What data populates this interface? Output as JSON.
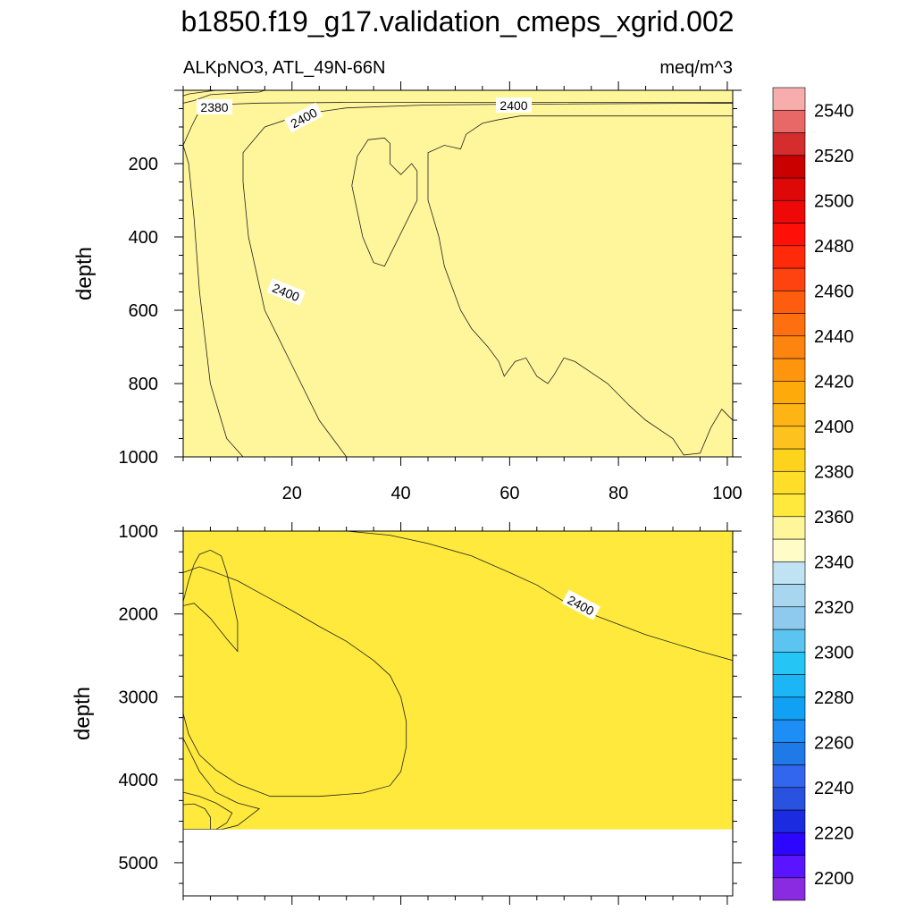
{
  "chart_data": {
    "type": "contour",
    "title": "b1850.f19_g17.validation_cmeps_xgrid.002",
    "subtitle_left": "ALKpNO3, ATL_49N-66N",
    "subtitle_right": "meq/m^3",
    "ylabel": "depth",
    "xlim": [
      0,
      101
    ],
    "x_ticks": [
      "20",
      "40",
      "60",
      "80",
      "100"
    ],
    "panels": [
      {
        "name": "upper",
        "ylim": [
          0,
          1000
        ],
        "y_ticks": [
          "200",
          "400",
          "600",
          "800",
          "1000"
        ],
        "contour_labels": [
          "2380",
          "2400",
          "2400",
          "2400"
        ],
        "regions": [
          {
            "level": 2390,
            "color": "#fff59a",
            "polygon": [
              [
                0,
                0
              ],
              [
                101,
                0
              ],
              [
                101,
                1000
              ],
              [
                0,
                1000
              ]
            ]
          },
          {
            "level": 2400,
            "color": "#fee93c",
            "polygon": [
              [
                0,
                150
              ],
              [
                1.5,
                100
              ],
              [
                3,
                55
              ],
              [
                5,
                42
              ],
              [
                8,
                38
              ],
              [
                14,
                35
              ],
              [
                30,
                33
              ],
              [
                60,
                33
              ],
              [
                101,
                33
              ],
              [
                101,
                1000
              ],
              [
                11,
                1000
              ],
              [
                8,
                950
              ],
              [
                5,
                800
              ],
              [
                3,
                550
              ],
              [
                2,
                350
              ],
              [
                1,
                200
              ]
            ]
          },
          {
            "level": 2410,
            "color": "#fed31c",
            "polygon": [
              [
                11,
                170
              ],
              [
                15,
                100
              ],
              [
                22,
                65
              ],
              [
                30,
                48
              ],
              [
                45,
                40
              ],
              [
                60,
                38
              ],
              [
                101,
                35
              ],
              [
                101,
                1000
              ],
              [
                30,
                1000
              ],
              [
                25,
                900
              ],
              [
                20,
                750
              ],
              [
                15,
                600
              ],
              [
                12,
                400
              ],
              [
                11,
                250
              ]
            ]
          },
          {
            "level": 2420,
            "color": "#fec21e",
            "polygon": [
              [
                32,
                180
              ],
              [
                34,
                135
              ],
              [
                37,
                130
              ],
              [
                38,
                145
              ],
              [
                38,
                200
              ],
              [
                40,
                230
              ],
              [
                42,
                200
              ],
              [
                43,
                220
              ],
              [
                43,
                300
              ],
              [
                41,
                360
              ],
              [
                39,
                420
              ],
              [
                37,
                480
              ],
              [
                35,
                470
              ],
              [
                33,
                400
              ],
              [
                31,
                260
              ]
            ]
          },
          {
            "level": 2420,
            "color": "#fec21e",
            "polygon": [
              [
                45,
                170
              ],
              [
                48,
                150
              ],
              [
                51,
                160
              ],
              [
                52,
                120
              ],
              [
                55,
                90
              ],
              [
                58,
                80
              ],
              [
                62,
                70
              ],
              [
                101,
                70
              ],
              [
                101,
                900
              ],
              [
                99,
                870
              ],
              [
                97,
                920
              ],
              [
                95,
                990
              ],
              [
                92,
                995
              ],
              [
                90,
                950
              ],
              [
                85,
                900
              ],
              [
                82,
                860
              ],
              [
                78,
                800
              ],
              [
                75,
                770
              ],
              [
                72,
                740
              ],
              [
                70,
                730
              ],
              [
                68,
                780
              ],
              [
                67,
                800
              ],
              [
                65,
                780
              ],
              [
                63,
                730
              ],
              [
                61,
                740
              ],
              [
                59,
                780
              ],
              [
                58,
                740
              ],
              [
                56,
                700
              ],
              [
                53,
                650
              ],
              [
                51,
                600
              ],
              [
                48,
                480
              ],
              [
                47,
                400
              ],
              [
                45,
                300
              ]
            ]
          },
          {
            "level": 2380,
            "color": "#bfe3f3",
            "polygon": [
              [
                0,
                0
              ],
              [
                15,
                0
              ],
              [
                14,
                5
              ],
              [
                9,
                8
              ],
              [
                5,
                12
              ],
              [
                2,
                28
              ],
              [
                0,
                35
              ]
            ]
          },
          {
            "level": 2370,
            "color": "#8ec9ee",
            "polygon": [
              [
                0,
                0
              ],
              [
                6,
                0
              ],
              [
                4,
                4
              ],
              [
                1,
                10
              ],
              [
                0,
                15
              ]
            ]
          }
        ]
      },
      {
        "name": "lower",
        "ylim": [
          1000,
          5400
        ],
        "y_ticks": [
          "1000",
          "2000",
          "3000",
          "4000",
          "5000"
        ],
        "contour_labels": [
          "2400"
        ],
        "data_bottom": 4600,
        "regions": [
          {
            "level": 2400,
            "color": "#fee93c",
            "polygon": [
              [
                0,
                1000
              ],
              [
                101,
                1000
              ],
              [
                101,
                4600
              ],
              [
                0,
                4600
              ]
            ]
          },
          {
            "level": 2410,
            "color": "#fed31c",
            "polygon": [
              [
                30,
                1000
              ],
              [
                101,
                1000
              ],
              [
                101,
                2560
              ],
              [
                95,
                2450
              ],
              [
                85,
                2250
              ],
              [
                75,
                2000
              ],
              [
                70,
                1850
              ],
              [
                65,
                1650
              ],
              [
                60,
                1500
              ],
              [
                53,
                1300
              ],
              [
                45,
                1150
              ],
              [
                38,
                1050
              ],
              [
                30,
                1000
              ]
            ]
          },
          {
            "level": 2390,
            "color": "#fff59a",
            "polygon": [
              [
                0,
                1500
              ],
              [
                3,
                1430
              ],
              [
                6,
                1500
              ],
              [
                10,
                1600
              ],
              [
                15,
                1780
              ],
              [
                20,
                1960
              ],
              [
                25,
                2150
              ],
              [
                30,
                2330
              ],
              [
                35,
                2560
              ],
              [
                38,
                2740
              ],
              [
                40,
                3000
              ],
              [
                41,
                3300
              ],
              [
                41,
                3600
              ],
              [
                40,
                3900
              ],
              [
                38,
                4070
              ],
              [
                33,
                4160
              ],
              [
                25,
                4200
              ],
              [
                16,
                4200
              ],
              [
                10,
                4050
              ],
              [
                6,
                3880
              ],
              [
                3,
                3700
              ],
              [
                1,
                3450
              ],
              [
                0,
                3200
              ]
            ]
          },
          {
            "level": 2380,
            "color": "#fffcc8",
            "polygon": [
              [
                0,
                1850
              ],
              [
                1,
                1600
              ],
              [
                2,
                1400
              ],
              [
                3,
                1280
              ],
              [
                5,
                1230
              ],
              [
                7,
                1300
              ],
              [
                8,
                1500
              ],
              [
                9,
                1800
              ],
              [
                10,
                2100
              ],
              [
                10,
                2450
              ],
              [
                8,
                2300
              ],
              [
                5,
                2050
              ],
              [
                2,
                1870
              ],
              [
                0,
                1900
              ]
            ]
          },
          {
            "level": 2410,
            "color": "#fed31c",
            "polygon": [
              [
                0,
                3500
              ],
              [
                3,
                3900
              ],
              [
                6,
                4150
              ],
              [
                10,
                4280
              ],
              [
                14,
                4350
              ],
              [
                12,
                4450
              ],
              [
                10,
                4550
              ],
              [
                7,
                4600
              ],
              [
                0,
                4600
              ]
            ]
          },
          {
            "level": 2420,
            "color": "#fec21e",
            "polygon": [
              [
                0,
                4150
              ],
              [
                3,
                4200
              ],
              [
                6,
                4280
              ],
              [
                9,
                4400
              ],
              [
                8,
                4520
              ],
              [
                6,
                4600
              ],
              [
                0,
                4600
              ]
            ]
          },
          {
            "level": 2430,
            "color": "#feaa0a",
            "polygon": [
              [
                0,
                4300
              ],
              [
                2,
                4290
              ],
              [
                4,
                4350
              ],
              [
                5,
                4450
              ],
              [
                5,
                4600
              ],
              [
                0,
                4600
              ]
            ]
          }
        ]
      }
    ],
    "colorbar": {
      "tick_labels": [
        "2200",
        "2220",
        "2240",
        "2260",
        "2280",
        "2300",
        "2320",
        "2340",
        "2360",
        "2380",
        "2400",
        "2420",
        "2440",
        "2460",
        "2480",
        "2500",
        "2520",
        "2540"
      ],
      "colors": [
        "#8a2be2",
        "#5b14ff",
        "#2c06ff",
        "#1a2be0",
        "#2a52e0",
        "#3366ee",
        "#1f7ae8",
        "#1d8ef5",
        "#10a1f5",
        "#1cb6f6",
        "#25c5f5",
        "#5bc4f0",
        "#8ec9ee",
        "#a7d6ee",
        "#bfe3f3",
        "#fffcc8",
        "#fff59a",
        "#fee93c",
        "#fede28",
        "#fed31c",
        "#fec21e",
        "#feb414",
        "#feaa0a",
        "#fe950c",
        "#fe8410",
        "#fe6f10",
        "#fe5d10",
        "#fe4310",
        "#fe2a0a",
        "#fe1008",
        "#ee0808",
        "#de0808",
        "#c80000",
        "#d52d2d",
        "#e86767",
        "#f8adad"
      ]
    }
  }
}
